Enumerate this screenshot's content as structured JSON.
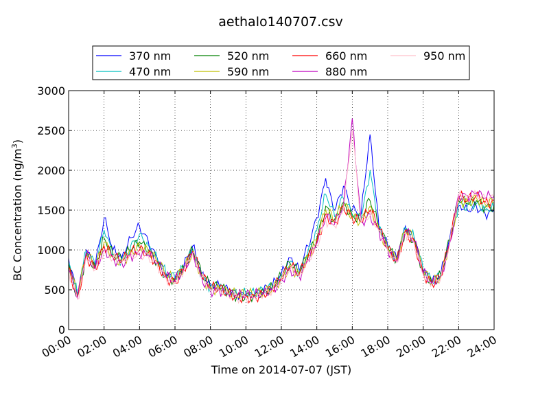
{
  "chart_data": {
    "type": "line",
    "title": "aethalo140707.csv",
    "xlabel": "Time on 2014-07-07 (JST)",
    "ylabel": "BC Concentration (ng/m",
    "ylabel_superscript": "3",
    "ylabel_suffix": ")",
    "xlim": [
      0,
      24
    ],
    "ylim": [
      0,
      3000
    ],
    "x_ticks": [
      0,
      2,
      4,
      6,
      8,
      10,
      12,
      14,
      16,
      18,
      20,
      22,
      24
    ],
    "x_tick_labels": [
      "00:00",
      "02:00",
      "04:00",
      "06:00",
      "08:00",
      "10:00",
      "12:00",
      "14:00",
      "16:00",
      "18:00",
      "20:00",
      "22:00",
      "24:00"
    ],
    "y_ticks": [
      0,
      500,
      1000,
      1500,
      2000,
      2500,
      3000
    ],
    "y_tick_labels": [
      "0",
      "500",
      "1000",
      "1500",
      "2000",
      "2500",
      "3000"
    ],
    "grid": true,
    "legend_position": "top",
    "x": [
      0,
      0.5,
      1,
      1.5,
      2,
      2.5,
      3,
      3.5,
      4,
      4.5,
      5,
      5.5,
      6,
      6.5,
      7,
      7.5,
      8,
      8.5,
      9,
      9.5,
      10,
      10.5,
      11,
      11.5,
      12,
      12.5,
      13,
      13.5,
      14,
      14.5,
      15,
      15.5,
      16,
      16.5,
      17,
      17.5,
      18,
      18.5,
      19,
      19.5,
      20,
      20.5,
      21,
      21.5,
      22,
      22.5,
      23,
      23.5,
      24
    ],
    "series": [
      {
        "name": "370 nm",
        "color": "#0000ff",
        "values": [
          900,
          450,
          1000,
          800,
          1400,
          1000,
          900,
          1150,
          1300,
          1100,
          900,
          700,
          650,
          800,
          1050,
          700,
          550,
          550,
          500,
          450,
          450,
          450,
          500,
          550,
          700,
          900,
          750,
          1050,
          1400,
          1900,
          1500,
          1800,
          1500,
          1450,
          2450,
          1300,
          1050,
          900,
          1300,
          1150,
          750,
          600,
          700,
          1150,
          1550,
          1500,
          1550,
          1450,
          1500
        ]
      },
      {
        "name": "470 nm",
        "color": "#00bfbf",
        "values": [
          850,
          430,
          980,
          800,
          1250,
          950,
          880,
          1050,
          1200,
          1050,
          880,
          690,
          640,
          790,
          1020,
          690,
          540,
          540,
          490,
          440,
          440,
          440,
          490,
          540,
          680,
          860,
          720,
          980,
          1250,
          1700,
          1420,
          1650,
          1450,
          1400,
          2000,
          1300,
          1040,
          890,
          1280,
          1140,
          740,
          600,
          690,
          1130,
          1580,
          1560,
          1580,
          1500,
          1520
        ]
      },
      {
        "name": "520 nm",
        "color": "#008000",
        "values": [
          820,
          420,
          960,
          790,
          1150,
          930,
          870,
          1000,
          1100,
          1000,
          860,
          680,
          630,
          780,
          1000,
          680,
          530,
          530,
          480,
          430,
          440,
          440,
          480,
          530,
          660,
          830,
          700,
          940,
          1150,
          1550,
          1380,
          1600,
          1420,
          1380,
          1620,
          1280,
          1030,
          880,
          1260,
          1130,
          730,
          590,
          680,
          1120,
          1620,
          1580,
          1620,
          1540,
          1560
        ]
      },
      {
        "name": "590 nm",
        "color": "#bfbf00",
        "values": [
          800,
          410,
          950,
          780,
          1100,
          920,
          860,
          980,
          1050,
          980,
          850,
          670,
          620,
          770,
          990,
          680,
          520,
          520,
          470,
          430,
          430,
          430,
          470,
          520,
          650,
          810,
          690,
          920,
          1120,
          1500,
          1360,
          1580,
          1410,
          1370,
          1550,
          1270,
          1020,
          870,
          1250,
          1120,
          720,
          590,
          680,
          1110,
          1640,
          1600,
          1650,
          1570,
          1590
        ]
      },
      {
        "name": "660 nm",
        "color": "#ff0000",
        "values": [
          780,
          400,
          940,
          770,
          1050,
          910,
          850,
          960,
          1000,
          960,
          840,
          660,
          610,
          760,
          980,
          670,
          510,
          510,
          460,
          420,
          420,
          420,
          460,
          510,
          640,
          790,
          680,
          900,
          1100,
          1450,
          1340,
          1560,
          1400,
          1360,
          1500,
          1260,
          1010,
          860,
          1240,
          1110,
          710,
          580,
          670,
          1100,
          1660,
          1620,
          1680,
          1600,
          1620
        ]
      },
      {
        "name": "880 nm",
        "color": "#bf00bf",
        "values": [
          760,
          390,
          930,
          760,
          1000,
          900,
          840,
          940,
          950,
          940,
          830,
          650,
          600,
          750,
          970,
          660,
          500,
          500,
          450,
          420,
          420,
          420,
          450,
          500,
          630,
          770,
          670,
          880,
          1080,
          1400,
          1320,
          1540,
          2650,
          1350,
          1450,
          1250,
          1000,
          850,
          1230,
          1100,
          700,
          580,
          660,
          1090,
          1700,
          1680,
          1720,
          1650,
          1680
        ]
      },
      {
        "name": "950 nm",
        "color": "#ffc0cb",
        "values": [
          740,
          380,
          920,
          750,
          980,
          890,
          830,
          920,
          930,
          920,
          820,
          640,
          590,
          740,
          960,
          650,
          490,
          490,
          440,
          410,
          410,
          410,
          440,
          490,
          620,
          750,
          660,
          860,
          1060,
          1380,
          1300,
          1520,
          2500,
          1340,
          1430,
          1240,
          990,
          840,
          1220,
          1090,
          690,
          570,
          650,
          1080,
          1680,
          1660,
          1700,
          1640,
          1670
        ]
      }
    ]
  }
}
